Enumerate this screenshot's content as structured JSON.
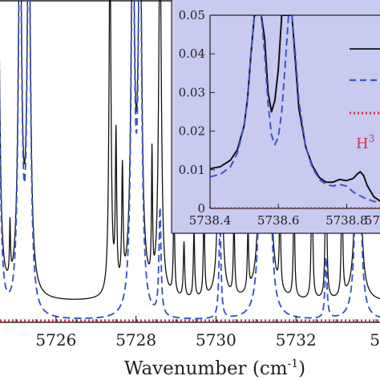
{
  "chart_data": [
    {
      "type": "line",
      "xlabel": "Wavenumber (cm",
      "xlabel_superscript": "-1",
      "xlabel_suffix": ")",
      "xlim": [
        5724.6,
        5734.1
      ],
      "ylim": [
        0,
        1
      ],
      "x_ticks": [
        5726,
        5728,
        5730,
        5732
      ],
      "x_tick_labels": [
        "5726",
        "5728",
        "5730",
        "5732",
        "5"
      ],
      "grid": false,
      "series": [
        {
          "style": "solid",
          "color": "#111111",
          "baseline": 0.06,
          "peaks": [
            {
              "x": 5724.55,
              "h": 1.2,
              "w": 0.05
            },
            {
              "x": 5724.85,
              "h": 0.18,
              "w": 0.015
            },
            {
              "x": 5725.1,
              "h": 1.3,
              "w": 0.05
            },
            {
              "x": 5725.32,
              "h": 1.3,
              "w": 0.05
            },
            {
              "x": 5727.35,
              "h": 1.15,
              "w": 0.03
            },
            {
              "x": 5727.5,
              "h": 0.5,
              "w": 0.02
            },
            {
              "x": 5727.66,
              "h": 0.38,
              "w": 0.02
            },
            {
              "x": 5727.92,
              "h": 1.3,
              "w": 0.05
            },
            {
              "x": 5728.1,
              "h": 1.3,
              "w": 0.05
            },
            {
              "x": 5728.4,
              "h": 0.42,
              "w": 0.015
            },
            {
              "x": 5728.6,
              "h": 1.2,
              "w": 0.04
            },
            {
              "x": 5728.95,
              "h": 0.3,
              "w": 0.02
            },
            {
              "x": 5729.2,
              "h": 0.18,
              "w": 0.02
            },
            {
              "x": 5729.45,
              "h": 0.22,
              "w": 0.02
            },
            {
              "x": 5729.7,
              "h": 0.28,
              "w": 0.02
            },
            {
              "x": 5730.1,
              "h": 1.2,
              "w": 0.04
            },
            {
              "x": 5730.45,
              "h": 0.25,
              "w": 0.02
            },
            {
              "x": 5730.8,
              "h": 0.2,
              "w": 0.02
            },
            {
              "x": 5731.15,
              "h": 1.3,
              "w": 0.05
            },
            {
              "x": 5731.3,
              "h": 1.3,
              "w": 0.05
            },
            {
              "x": 5731.6,
              "h": 0.28,
              "w": 0.02
            },
            {
              "x": 5731.95,
              "h": 0.35,
              "w": 0.02
            },
            {
              "x": 5732.4,
              "h": 0.5,
              "w": 0.02
            },
            {
              "x": 5732.75,
              "h": 0.6,
              "w": 0.02
            },
            {
              "x": 5733.15,
              "h": 0.42,
              "w": 0.02
            },
            {
              "x": 5733.55,
              "h": 1.3,
              "w": 0.05
            }
          ]
        },
        {
          "style": "dashed",
          "color": "#3b55c8",
          "baseline": 0.0,
          "peaks": [
            {
              "x": 5724.55,
              "h": 1.2,
              "w": 0.05
            },
            {
              "x": 5725.1,
              "h": 1.3,
              "w": 0.05
            },
            {
              "x": 5725.32,
              "h": 1.3,
              "w": 0.05
            },
            {
              "x": 5727.92,
              "h": 1.3,
              "w": 0.05
            },
            {
              "x": 5728.1,
              "h": 1.3,
              "w": 0.05
            },
            {
              "x": 5728.6,
              "h": 0.35,
              "w": 0.03
            },
            {
              "x": 5730.1,
              "h": 0.32,
              "w": 0.03
            },
            {
              "x": 5731.15,
              "h": 1.3,
              "w": 0.05
            },
            {
              "x": 5731.3,
              "h": 1.3,
              "w": 0.05
            },
            {
              "x": 5732.75,
              "h": 0.2,
              "w": 0.03
            },
            {
              "x": 5733.55,
              "h": 1.3,
              "w": 0.05
            }
          ]
        },
        {
          "style": "dotted",
          "color": "#d9304a",
          "baseline": 0.0,
          "peaks": []
        }
      ]
    },
    {
      "type": "line",
      "panel": "inset",
      "background": "#c9caf0",
      "xlim": [
        5738.4,
        5739.0
      ],
      "ylim": [
        0,
        0.05
      ],
      "x_ticks": [
        5738.4,
        5738.6,
        5738.8
      ],
      "x_tick_labels": [
        "5738.4",
        "5738.6",
        "5738.8",
        "57"
      ],
      "y_ticks": [
        0,
        0.01,
        0.02,
        0.03,
        0.04,
        0.05
      ],
      "y_tick_labels": [
        "0",
        "0.01",
        "0.02",
        "0.03",
        "0.04",
        "0.05"
      ],
      "legend_text": "H",
      "legend_text_superscript": "3",
      "series": [
        {
          "style": "solid",
          "color": "#111111",
          "points": [
            [
              5738.4,
              0.0103
            ],
            [
              5738.43,
              0.0108
            ],
            [
              5738.46,
              0.0125
            ],
            [
              5738.48,
              0.0152
            ],
            [
              5738.5,
              0.0215
            ],
            [
              5738.51,
              0.0285
            ],
            [
              5738.52,
              0.04
            ],
            [
              5738.53,
              0.05
            ],
            [
              5738.55,
              0.05
            ],
            [
              5738.56,
              0.044
            ],
            [
              5738.57,
              0.03
            ],
            [
              5738.58,
              0.025
            ],
            [
              5738.59,
              0.028
            ],
            [
              5738.6,
              0.036
            ],
            [
              5738.61,
              0.05
            ],
            [
              5738.64,
              0.05
            ],
            [
              5738.65,
              0.038
            ],
            [
              5738.66,
              0.026
            ],
            [
              5738.68,
              0.016
            ],
            [
              5738.7,
              0.011
            ],
            [
              5738.72,
              0.008
            ],
            [
              5738.74,
              0.0068
            ],
            [
              5738.76,
              0.0068
            ],
            [
              5738.78,
              0.0075
            ],
            [
              5738.8,
              0.0072
            ],
            [
              5738.82,
              0.0078
            ],
            [
              5738.83,
              0.0088
            ],
            [
              5738.84,
              0.0095
            ],
            [
              5738.85,
              0.0085
            ],
            [
              5738.86,
              0.006
            ],
            [
              5738.88,
              0.003
            ],
            [
              5738.9,
              0.0018
            ],
            [
              5738.93,
              0.0012
            ],
            [
              5738.96,
              0.001
            ],
            [
              5739.0,
              0.0008
            ]
          ]
        },
        {
          "style": "dashed",
          "color": "#3b55c8",
          "points": [
            [
              5738.4,
              0.0082
            ],
            [
              5738.43,
              0.0088
            ],
            [
              5738.46,
              0.0108
            ],
            [
              5738.48,
              0.0143
            ],
            [
              5738.5,
              0.0215
            ],
            [
              5738.51,
              0.0285
            ],
            [
              5738.52,
              0.04
            ],
            [
              5738.53,
              0.05
            ],
            [
              5738.55,
              0.05
            ],
            [
              5738.56,
              0.04
            ],
            [
              5738.57,
              0.027
            ],
            [
              5738.58,
              0.019
            ],
            [
              5738.59,
              0.0165
            ],
            [
              5738.6,
              0.0185
            ],
            [
              5738.61,
              0.025
            ],
            [
              5738.62,
              0.037
            ],
            [
              5738.63,
              0.05
            ],
            [
              5738.64,
              0.05
            ],
            [
              5738.65,
              0.04
            ],
            [
              5738.66,
              0.028
            ],
            [
              5738.68,
              0.016
            ],
            [
              5738.7,
              0.0105
            ],
            [
              5738.72,
              0.0075
            ],
            [
              5738.74,
              0.0062
            ],
            [
              5738.76,
              0.0058
            ],
            [
              5738.78,
              0.0062
            ],
            [
              5738.8,
              0.0058
            ],
            [
              5738.82,
              0.0042
            ],
            [
              5738.85,
              0.0028
            ],
            [
              5738.88,
              0.0018
            ],
            [
              5738.92,
              0.0012
            ],
            [
              5738.96,
              0.0009
            ],
            [
              5739.0,
              0.0008
            ]
          ]
        },
        {
          "style": "dotted",
          "color": "#d9304a",
          "points": [
            [
              5738.4,
              0.0
            ],
            [
              5739.0,
              0.0
            ]
          ]
        }
      ]
    }
  ]
}
